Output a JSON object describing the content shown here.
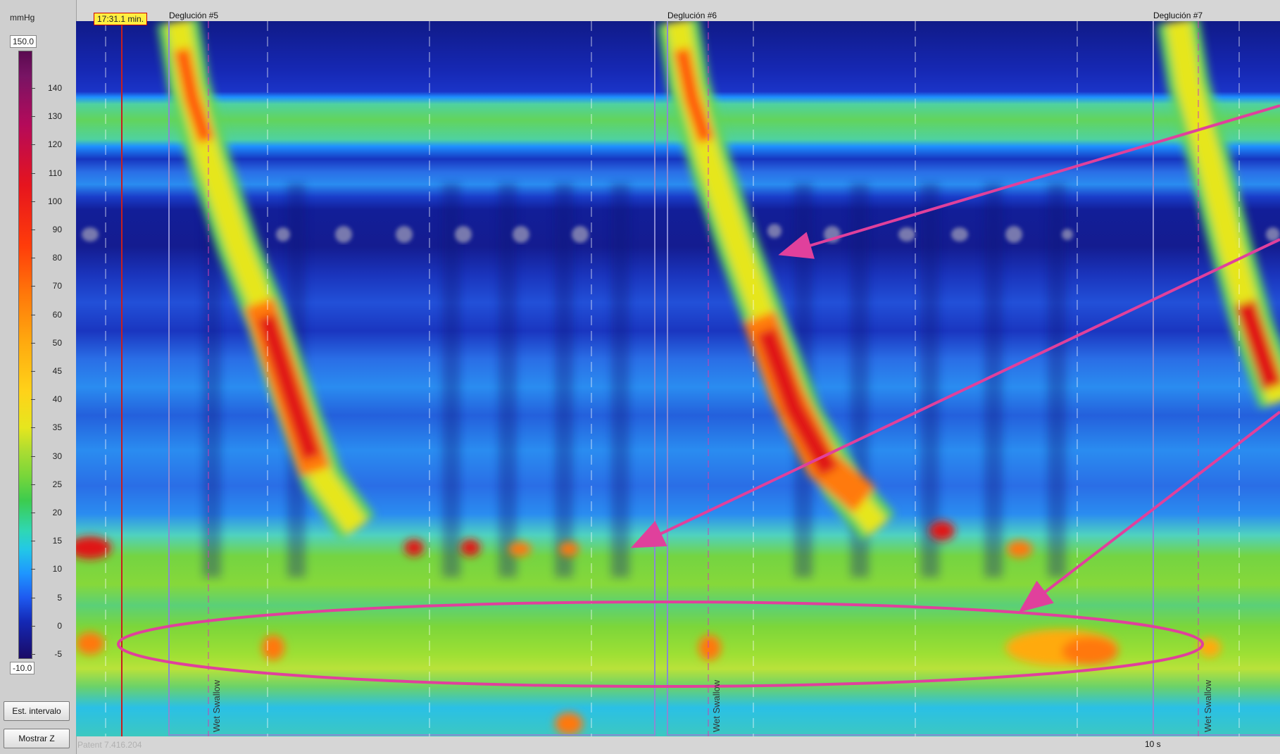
{
  "sidebar": {
    "unit": "mmHg",
    "max_label": "150.0",
    "min_label": "-10.0",
    "scale_ticks": [
      "140",
      "130",
      "120",
      "110",
      "100",
      "90",
      "80",
      "70",
      "60",
      "50",
      "45",
      "40",
      "35",
      "30",
      "25",
      "20",
      "15",
      "10",
      "5",
      "0",
      "-5"
    ],
    "buttons": {
      "interval": "Est. intervalo",
      "showz": "Mostrar Z"
    }
  },
  "timestamp": "17:31.1 min.",
  "swallows": [
    {
      "label": "Deglución #5",
      "marker": "Wet Swallow"
    },
    {
      "label": "Deglución #6",
      "marker": "Wet Swallow"
    },
    {
      "label": "Deglución #7",
      "marker": "Wet Swallow"
    }
  ],
  "patient": "Patent 7.416.204",
  "time_scale": "10 s",
  "colors": {
    "annotation": "#e0409c",
    "timestamp_bg": "#ffef40"
  }
}
